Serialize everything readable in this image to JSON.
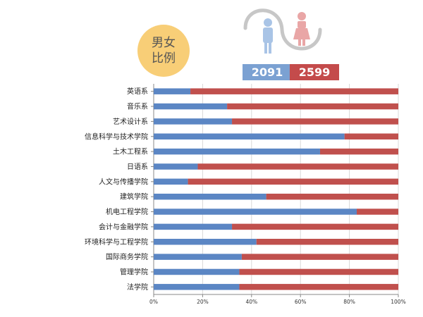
{
  "badge": {
    "line1": "男女",
    "line2": "比例"
  },
  "counts": {
    "male": "2091",
    "female": "2599"
  },
  "icons": {
    "male": "male-person-icon",
    "female": "female-person-icon",
    "connector": "wave-connector"
  },
  "colors": {
    "male": "#5b86c4",
    "female": "#c0504d",
    "badge": "#f8ce77",
    "male_box": "#7ba1d2",
    "female_box": "#c44b4b",
    "male_icon": "#a9c4e6",
    "female_icon": "#e9a6a6",
    "connector": "#c7c7c7"
  },
  "chart_data": {
    "type": "bar",
    "orientation": "horizontal",
    "stacked": "percent",
    "categories": [
      "英语系",
      "音乐系",
      "艺术设计系",
      "信息科学与技术学院",
      "土木工程系",
      "日语系",
      "人文与传播学院",
      "建筑学院",
      "机电工程学院",
      "会计与金融学院",
      "环境科学与工程学院",
      "国际商务学院",
      "管理学院",
      "法学院"
    ],
    "series": [
      {
        "values": [
          15,
          30,
          32,
          78,
          68,
          18,
          14,
          46,
          83,
          32,
          42,
          36,
          35,
          35
        ]
      },
      {
        "values": [
          85,
          70,
          68,
          22,
          32,
          82,
          86,
          54,
          17,
          68,
          58,
          64,
          65,
          65
        ]
      }
    ],
    "xlim": [
      0,
      100
    ],
    "xticks": [
      "0%",
      "20%",
      "40%",
      "60%",
      "80%",
      "100%"
    ],
    "grid": true,
    "legend": "none"
  }
}
